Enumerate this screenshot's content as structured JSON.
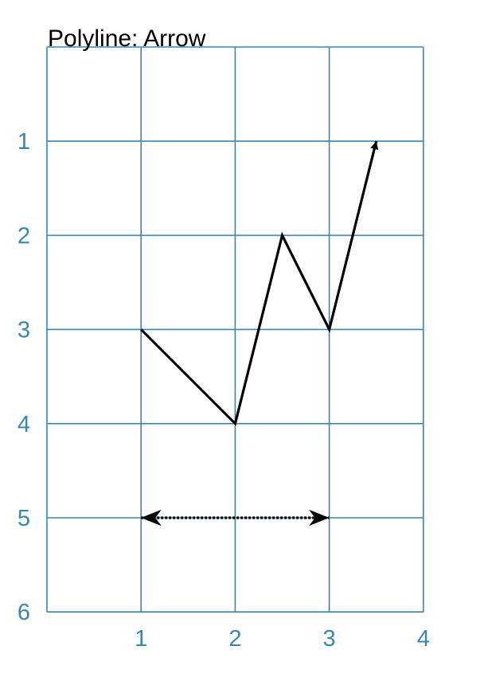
{
  "title": "Polyline: Arrow",
  "colors": {
    "grid": "#3a87ad",
    "ink": "#000000",
    "background": "#ffffff"
  },
  "axes": {
    "x_ticks": [
      "1",
      "2",
      "3",
      "4"
    ],
    "y_ticks": [
      "1",
      "2",
      "3",
      "4",
      "5",
      "6"
    ],
    "x_range": [
      0,
      4
    ],
    "y_range": [
      0,
      6
    ],
    "y_direction": "down",
    "grid": true
  },
  "shapes": {
    "polyline": {
      "points": [
        [
          1,
          3
        ],
        [
          2,
          4
        ],
        [
          2.5,
          2
        ],
        [
          3,
          3
        ],
        [
          3.5,
          1
        ]
      ],
      "arrow_end": true,
      "line_style": "solid"
    },
    "double_arrow": {
      "points": [
        [
          1,
          5
        ],
        [
          3,
          5
        ]
      ],
      "arrow_start": true,
      "arrow_end": true,
      "line_style": "dotted"
    }
  }
}
